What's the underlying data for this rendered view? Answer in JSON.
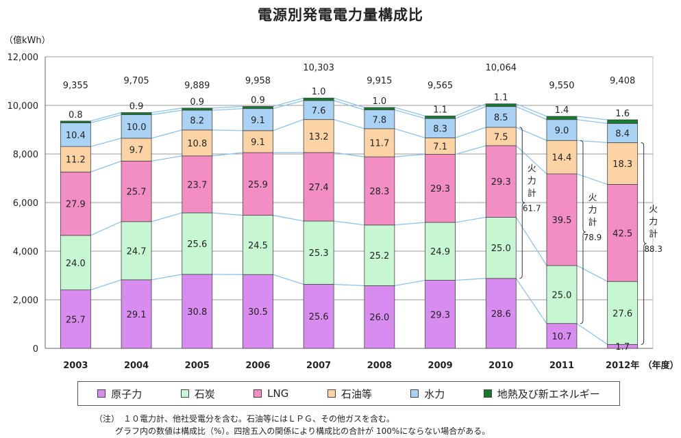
{
  "chart_data": {
    "type": "bar",
    "title": "電源別発電電力量構成比",
    "ylabel": "（億kWh）",
    "xlabel_suffix": "（年度）",
    "ylim": [
      0,
      12000
    ],
    "yticks": [
      "0",
      "2,000",
      "4,000",
      "6,000",
      "8,000",
      "10,000",
      "12,000"
    ],
    "categories": [
      "2003",
      "2004",
      "2005",
      "2006",
      "2007",
      "2008",
      "2009",
      "2010",
      "2011",
      "2012年"
    ],
    "totals": [
      9355,
      9705,
      9889,
      9958,
      10303,
      9915,
      9565,
      10064,
      9550,
      9408
    ],
    "total_labels": [
      "9,355",
      "9,705",
      "9,889",
      "9,958",
      "10,303",
      "9,915",
      "9,565",
      "10,064",
      "9,550",
      "9,408"
    ],
    "series": [
      {
        "name": "原子力",
        "color": "#d98cf0",
        "values": [
          25.7,
          29.1,
          30.8,
          30.5,
          25.6,
          26.0,
          29.3,
          28.6,
          10.7,
          1.7
        ]
      },
      {
        "name": "石炭",
        "color": "#c6f7d2",
        "values": [
          24.0,
          24.7,
          25.6,
          24.5,
          25.3,
          25.2,
          24.9,
          25.0,
          25.0,
          27.6
        ]
      },
      {
        "name": "LNG",
        "color": "#f28ec4",
        "values": [
          27.9,
          25.7,
          23.7,
          25.9,
          27.4,
          28.3,
          29.3,
          29.3,
          39.5,
          42.5
        ]
      },
      {
        "name": "石油等",
        "color": "#fcd3a4",
        "values": [
          11.2,
          9.7,
          10.8,
          9.1,
          13.2,
          11.7,
          7.1,
          7.5,
          14.4,
          18.3
        ]
      },
      {
        "name": "水力",
        "color": "#a9d2f5",
        "values": [
          10.4,
          10.0,
          8.2,
          9.1,
          7.6,
          7.8,
          8.3,
          8.5,
          9.0,
          8.4
        ]
      },
      {
        "name": "地熱及び新エネルギー",
        "color": "#147a2e",
        "values": [
          0.8,
          0.9,
          0.9,
          0.9,
          1.0,
          1.0,
          1.1,
          1.1,
          1.4,
          1.6
        ]
      }
    ],
    "annotations": [
      {
        "category": "2010",
        "label": "火力計",
        "value": "61.7"
      },
      {
        "category": "2011",
        "label": "火力計",
        "value": "78.9"
      },
      {
        "category": "2012年",
        "label": "火力計",
        "value": "88.3"
      }
    ],
    "grid": "horizontal",
    "legend_position": "bottom"
  },
  "notes": [
    "（注）　１０電力計、他社受電分を含む。石油等にはＬＰＧ、その他ガスを含む。",
    "グラフ内の数値は構成比（%）。四捨五入の関係により構成比の合計が 100%にならない場合がある。"
  ]
}
